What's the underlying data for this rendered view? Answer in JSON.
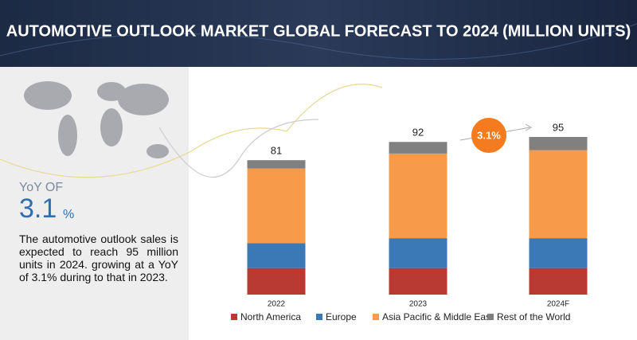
{
  "chart_data": {
    "type": "stacked-bar",
    "title": "AUTOMOTIVE OUTLOOK MARKET GLOBAL FORECAST TO 2024 (MILLION UNITS)",
    "yoy_label": "YoY OF",
    "yoy_value": "3.1",
    "yoy_unit": "%",
    "description": "The automotive outlook sales is expected to reach 95 million units in 2024. growing at a YoY of 3.1% during to that in 2023.",
    "annotation": "3.1%",
    "categories": [
      "2022",
      "2023",
      "2024F"
    ],
    "totals": [
      81,
      92,
      95
    ],
    "series": [
      {
        "name": "North America",
        "color": "#b83a32",
        "values": [
          16,
          16,
          16
        ]
      },
      {
        "name": "Europe",
        "color": "#3b79b6",
        "values": [
          15,
          18,
          18
        ]
      },
      {
        "name": "Asia Pacific & Middle East",
        "color": "#f79b4b",
        "values": [
          45,
          51,
          53
        ]
      },
      {
        "name": "Rest of the World",
        "color": "#808080",
        "values": [
          5,
          7,
          8
        ]
      }
    ]
  }
}
